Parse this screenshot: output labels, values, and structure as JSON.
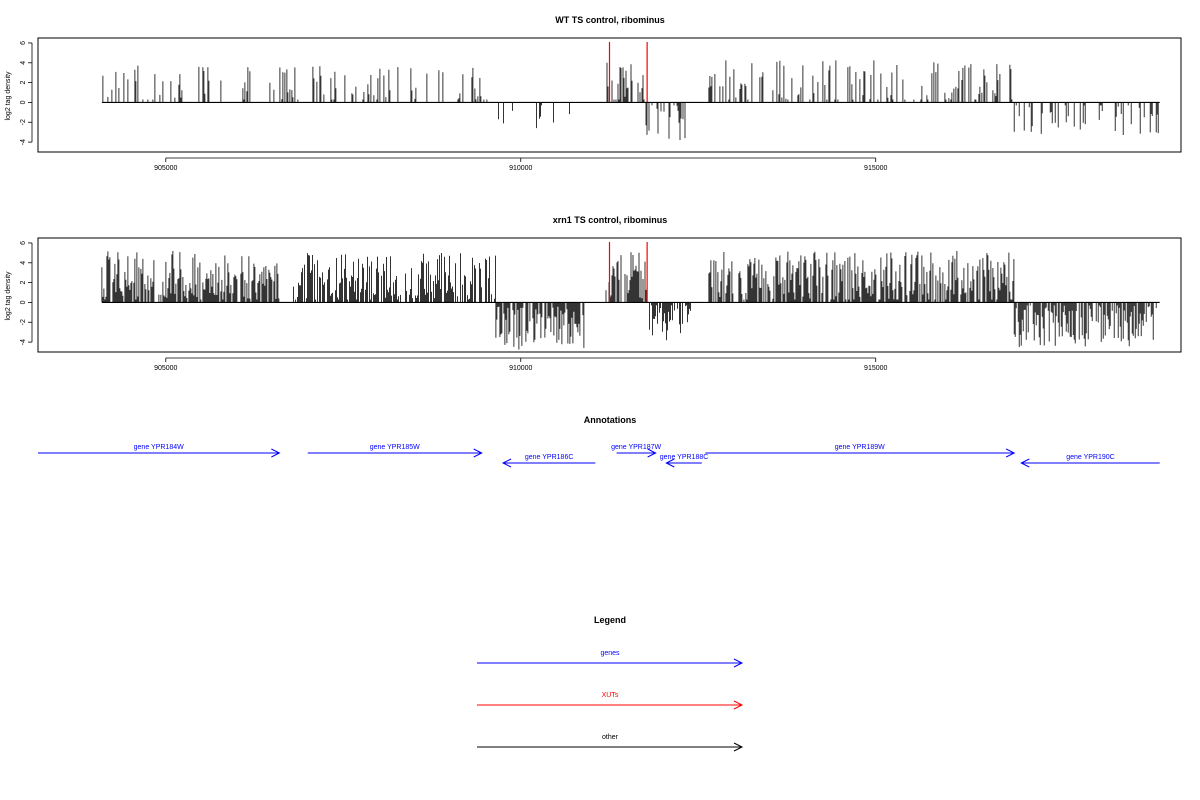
{
  "chart_data": [
    {
      "type": "bar",
      "title": "WT TS control, ribominus",
      "ylabel": "log2 tag density",
      "xlabel": "",
      "xlim": [
        903200,
        919300
      ],
      "ylim": [
        -5,
        6.5
      ],
      "ytick_labels": [
        "6",
        "4",
        "2",
        "0",
        "-2",
        "-4"
      ],
      "ytick_values": [
        6,
        4,
        2,
        0,
        -2,
        -4
      ],
      "xtick_labels": [
        "905000",
        "910000",
        "915000"
      ],
      "xtick_values": [
        905000,
        910000,
        915000
      ],
      "grid": false,
      "profile": [
        {
          "start": 904100,
          "end": 909600,
          "strand": "+",
          "level": 1.6,
          "spread": 2.2,
          "density": 0.22
        },
        {
          "start": 909600,
          "end": 910800,
          "strand": "-",
          "level": -1.5,
          "spread": 1.8,
          "density": 0.12
        },
        {
          "start": 911200,
          "end": 911750,
          "strand": "+",
          "level": 2.0,
          "spread": 2.2,
          "density": 0.55
        },
        {
          "start": 911750,
          "end": 912350,
          "strand": "-",
          "level": -1.6,
          "spread": 2.2,
          "density": 0.5
        },
        {
          "start": 912650,
          "end": 916950,
          "strand": "+",
          "level": 1.9,
          "spread": 2.4,
          "density": 0.32
        },
        {
          "start": 916950,
          "end": 919000,
          "strand": "-",
          "level": -1.5,
          "spread": 1.8,
          "density": 0.3
        }
      ],
      "highlight_color": "#ff0000",
      "highlights": [
        {
          "x": 911250,
          "y": 6.1
        },
        {
          "x": 911780,
          "y": 6.1
        }
      ]
    },
    {
      "type": "bar",
      "title": "xrn1 TS control, ribominus",
      "ylabel": "log2 tag density",
      "xlabel": "",
      "xlim": [
        903200,
        919300
      ],
      "ylim": [
        -5,
        6.5
      ],
      "ytick_labels": [
        "6",
        "4",
        "2",
        "0",
        "-2",
        "-4"
      ],
      "ytick_values": [
        6,
        4,
        2,
        0,
        -2,
        -4
      ],
      "xtick_labels": [
        "905000",
        "910000",
        "915000"
      ],
      "xtick_values": [
        905000,
        910000,
        915000
      ],
      "grid": false,
      "profile": [
        {
          "start": 904100,
          "end": 906600,
          "strand": "+",
          "level": 2.6,
          "spread": 2.6,
          "density": 0.8
        },
        {
          "start": 906800,
          "end": 909650,
          "strand": "+",
          "level": 2.4,
          "spread": 2.6,
          "density": 0.7
        },
        {
          "start": 909650,
          "end": 910900,
          "strand": "-",
          "level": -2.6,
          "spread": 2.2,
          "density": 0.8
        },
        {
          "start": 911200,
          "end": 911800,
          "strand": "+",
          "level": 2.8,
          "spread": 2.4,
          "density": 0.85
        },
        {
          "start": 911800,
          "end": 912400,
          "strand": "-",
          "level": -2.0,
          "spread": 2.0,
          "density": 0.75
        },
        {
          "start": 912650,
          "end": 916950,
          "strand": "+",
          "level": 2.6,
          "spread": 2.6,
          "density": 0.8
        },
        {
          "start": 916950,
          "end": 919000,
          "strand": "-",
          "level": -2.3,
          "spread": 2.2,
          "density": 0.7
        }
      ],
      "highlight_color": "#ff0000",
      "highlights": [
        {
          "x": 911250,
          "y": 6.1
        },
        {
          "x": 911780,
          "y": 6.1
        }
      ]
    }
  ],
  "annotations": {
    "title": "Annotations",
    "genes": [
      {
        "label": "gene YPR184W",
        "start": 903200,
        "end": 906600,
        "strand": "+",
        "row": 0
      },
      {
        "label": "gene YPR185W",
        "start": 907000,
        "end": 909450,
        "strand": "+",
        "row": 0
      },
      {
        "label": "gene YPR186C",
        "start": 909750,
        "end": 911050,
        "strand": "-",
        "row": 1
      },
      {
        "label": "gene YPR187W",
        "start": 911350,
        "end": 911900,
        "strand": "+",
        "row": 0
      },
      {
        "label": "gene YPR188C",
        "start": 912050,
        "end": 912550,
        "strand": "-",
        "row": 1
      },
      {
        "label": "gene YPR189W",
        "start": 912600,
        "end": 916950,
        "strand": "+",
        "row": 0
      },
      {
        "label": "gene YPR190C",
        "start": 917050,
        "end": 919000,
        "strand": "-",
        "row": 1
      }
    ],
    "color": "#0000ff"
  },
  "legend": {
    "title": "Legend",
    "items": [
      {
        "label": "genes",
        "color": "#0000ff"
      },
      {
        "label": "XUTs",
        "color": "#ff0000"
      },
      {
        "label": "other",
        "color": "#000000"
      }
    ]
  }
}
